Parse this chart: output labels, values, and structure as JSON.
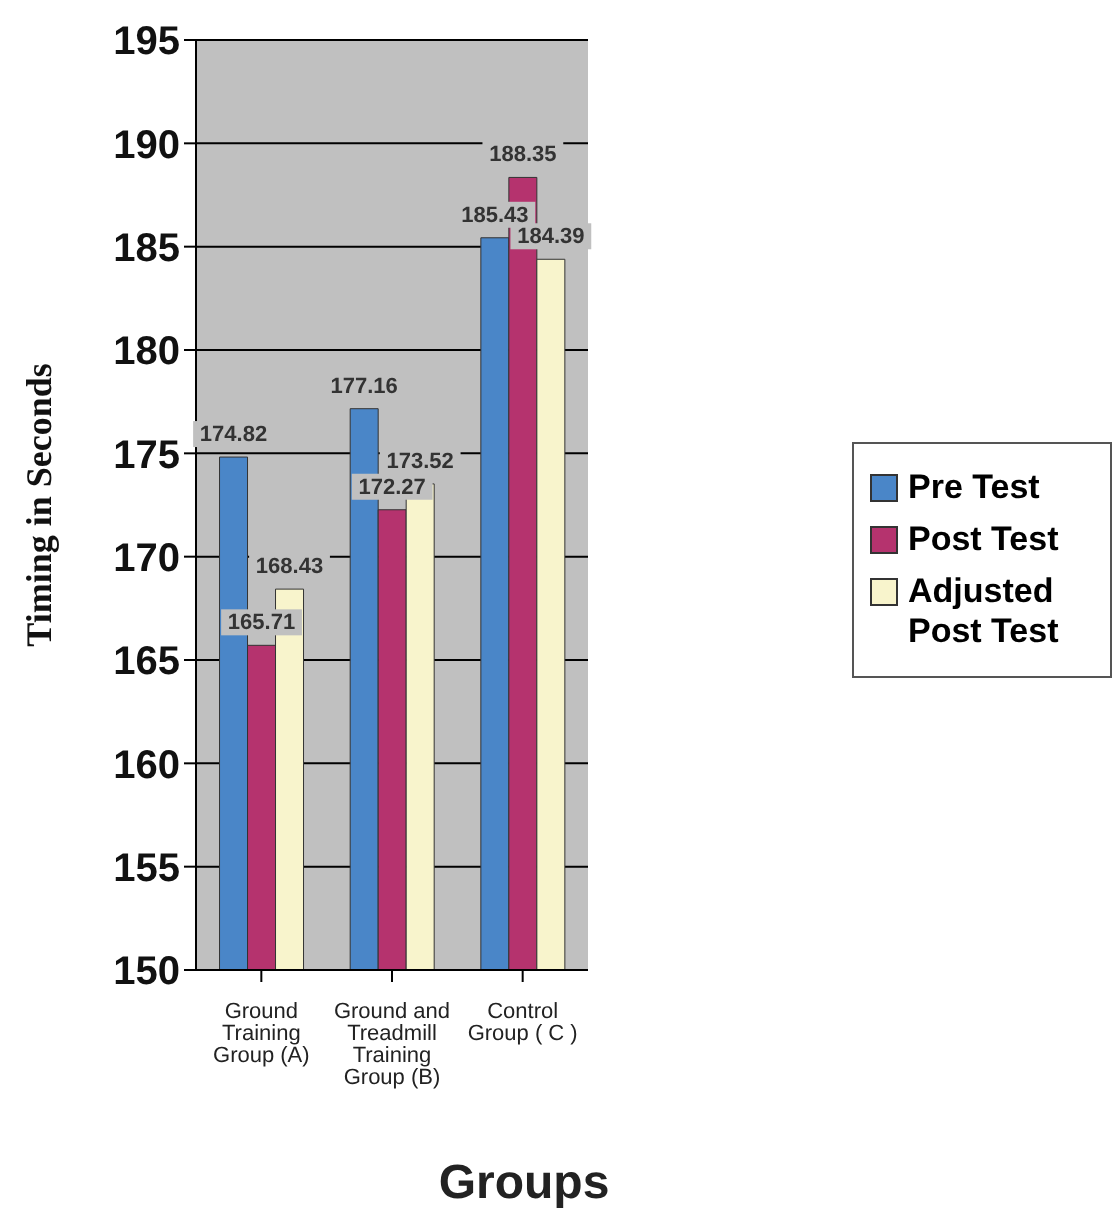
{
  "chart_data": {
    "type": "bar",
    "xlabel": "Groups",
    "ylabel": "Timing in Seconds",
    "categories": [
      "Ground Training Group (A)",
      "Ground and Treadmill Training Group (B)",
      "Control Group ( C )"
    ],
    "series": [
      {
        "name": "Pre Test",
        "color": "#4a86c8",
        "values": [
          174.82,
          177.16,
          185.43
        ]
      },
      {
        "name": "Post Test",
        "color": "#b5336e",
        "values": [
          165.71,
          172.27,
          188.35
        ]
      },
      {
        "name": "Adjusted Post Test",
        "color": "#f8f4cc",
        "values": [
          168.43,
          173.52,
          184.39
        ]
      }
    ],
    "ylim": [
      150,
      195
    ],
    "yticks": [
      150,
      155,
      160,
      165,
      170,
      175,
      180,
      185,
      190,
      195
    ],
    "grid": "y",
    "legend": "right",
    "data_labels": true
  }
}
